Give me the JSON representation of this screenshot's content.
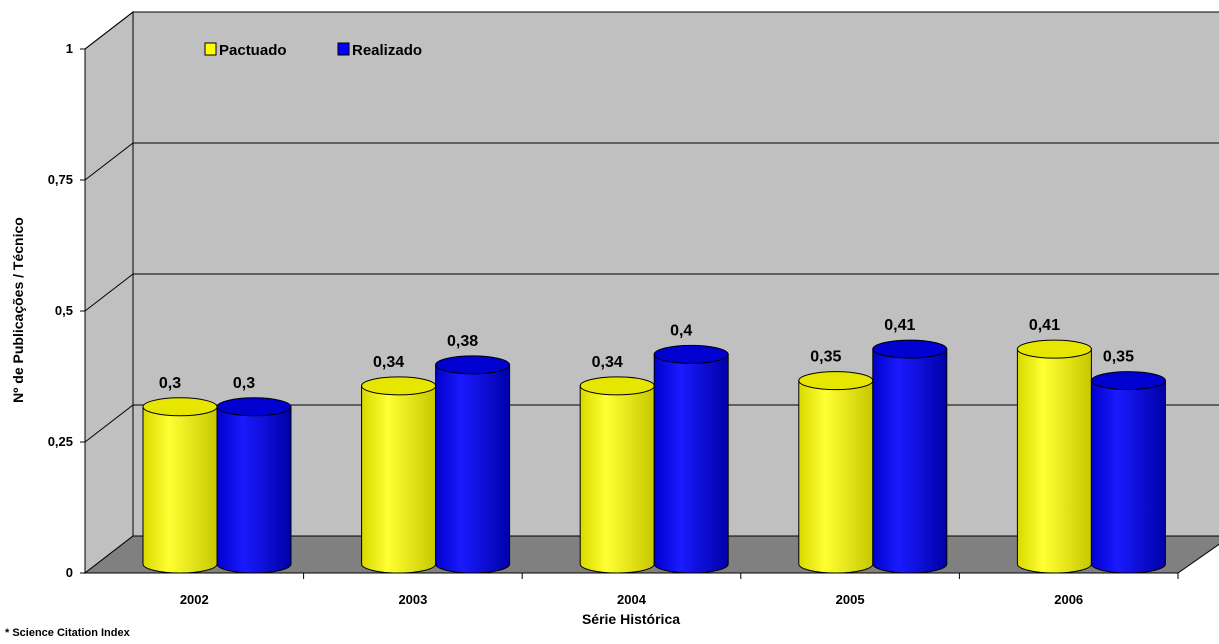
{
  "chart_data": {
    "type": "bar",
    "style": "3d-cylinder",
    "categories": [
      "2002",
      "2003",
      "2004",
      "2005",
      "2006"
    ],
    "series": [
      {
        "name": "Pactuado",
        "values": [
          0.3,
          0.34,
          0.34,
          0.35,
          0.41
        ],
        "labels": [
          "0,3",
          "0,34",
          "0,34",
          "0,35",
          "0,41"
        ],
        "color": "#ffff00"
      },
      {
        "name": "Realizado",
        "values": [
          0.3,
          0.38,
          0.4,
          0.41,
          0.35
        ],
        "labels": [
          "0,3",
          "0,38",
          "0,4",
          "0,41",
          "0,35"
        ],
        "color": "#0000ff"
      }
    ],
    "ylim": [
      0,
      1
    ],
    "yticks": [
      0,
      0.25,
      0.5,
      0.75,
      1
    ],
    "ytick_labels": [
      "0",
      "0,25",
      "0,5",
      "0,75",
      "1"
    ],
    "xlabel": "Série Histórica",
    "ylabel": "Nº de Publicações / Técnico",
    "legend_position": "top-left",
    "grid": true,
    "wall_color": "#c0c0c0",
    "floor_color": "#808080"
  },
  "footnote": "* Science Citation Index"
}
